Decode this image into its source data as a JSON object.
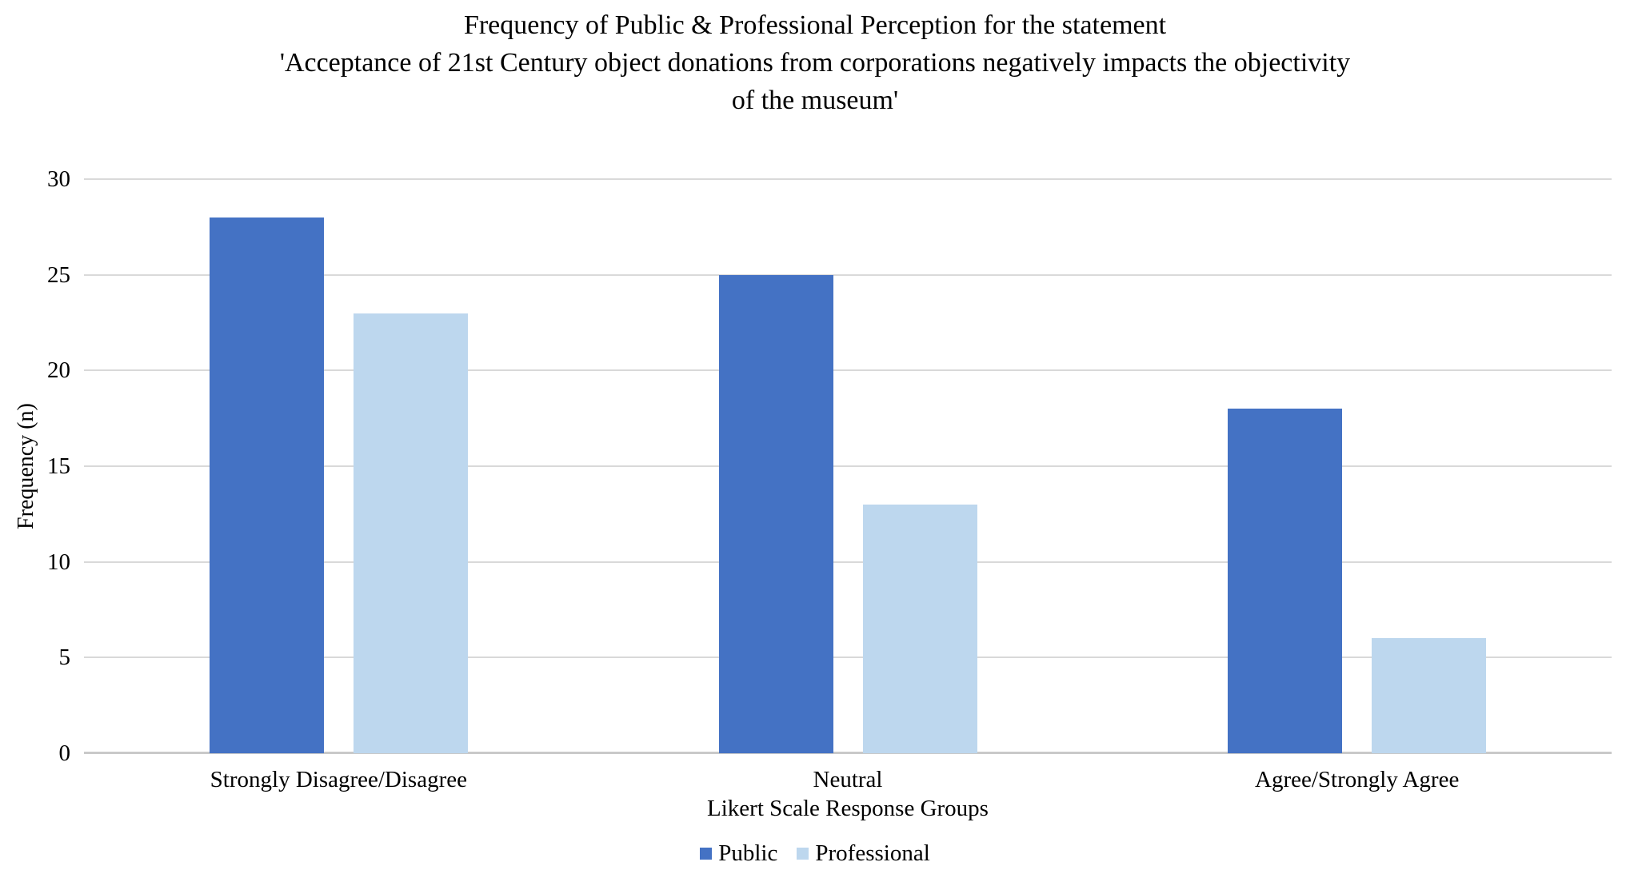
{
  "chart_data": {
    "type": "bar",
    "title_lines": [
      "Frequency of Public & Professional Perception for the statement",
      "'Acceptance of 21st Century object donations from corporations negatively impacts the objectivity",
      "of the museum'"
    ],
    "categories": [
      "Strongly Disagree/Disagree",
      "Neutral",
      "Agree/Strongly Agree"
    ],
    "series": [
      {
        "name": "Public",
        "color": "#4472C4",
        "values": [
          28,
          25,
          18
        ]
      },
      {
        "name": "Professional",
        "color": "#BDD7EE",
        "values": [
          23,
          13,
          6
        ]
      }
    ],
    "xlabel": "Likert Scale Response Groups",
    "ylabel": "Frequency (n)",
    "ylim": [
      0,
      30
    ],
    "yticks": [
      0,
      5,
      10,
      15,
      20,
      25,
      30
    ],
    "grid": "horizontal",
    "legend_position": "bottom",
    "colors": {
      "gridline": "#D9D9D9",
      "axis_line": "#C9C9C9",
      "text": "#000000"
    }
  }
}
